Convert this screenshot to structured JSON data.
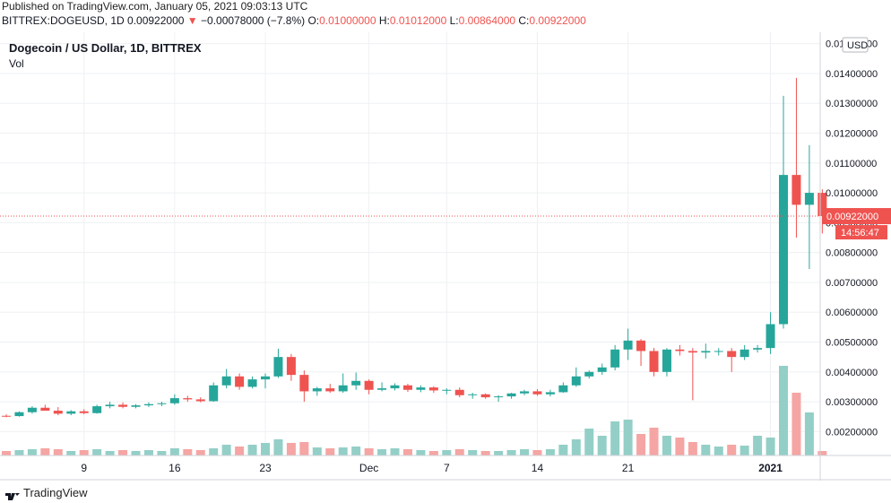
{
  "header": {
    "published": "Published on TradingView.com, January 05, 2021 09:03:13 UTC",
    "symbol": "BITTREX:DOGEUSD, 1D",
    "last": "0.00922000",
    "change": "−0.00078000 (−7.8%)",
    "o_label": "O:",
    "o_value": "0.01000000",
    "h_label": "H:",
    "h_value": "0.01012000",
    "l_label": "L:",
    "l_value": "0.00864000",
    "c_label": "C:",
    "c_value": "0.00922000"
  },
  "legend": {
    "title": "Dogecoin / US Dollar, 1D, BITTREX",
    "vol": "Vol"
  },
  "price_axis": {
    "currency": "USD",
    "last_price_label": "0.00922000",
    "countdown": "14:56:47",
    "ticks": [
      "0.01500000",
      "0.01400000",
      "0.01300000",
      "0.01200000",
      "0.01100000",
      "0.01000000",
      "0.00900000",
      "0.00800000",
      "0.00700000",
      "0.00600000",
      "0.00500000",
      "0.00400000",
      "0.00300000",
      "0.00200000"
    ]
  },
  "footer": {
    "brand": "TradingView"
  },
  "colors": {
    "up": "#26a69a",
    "down": "#ef5350",
    "up_vol": "#93cfc7",
    "down_vol": "#f5a5a3",
    "grid": "#eef0f3",
    "last_line": "#ef5350"
  },
  "chart_data": {
    "type": "candlestick",
    "title": "Dogecoin / US Dollar, 1D, BITTREX",
    "ylabel": "USD",
    "ylim": [
      0.0012,
      0.0152
    ],
    "x_tick_labels": [
      {
        "label": "9",
        "index": 6
      },
      {
        "label": "16",
        "index": 13
      },
      {
        "label": "23",
        "index": 20
      },
      {
        "label": "Dec",
        "index": 28
      },
      {
        "label": "7",
        "index": 34
      },
      {
        "label": "14",
        "index": 41
      },
      {
        "label": "21",
        "index": 48
      },
      {
        "label": "2021",
        "index": 59
      }
    ],
    "candles": [
      {
        "o": 0.00253,
        "h": 0.00258,
        "l": 0.00248,
        "c": 0.00252
      },
      {
        "o": 0.00252,
        "h": 0.00268,
        "l": 0.0025,
        "c": 0.00265
      },
      {
        "o": 0.00265,
        "h": 0.00285,
        "l": 0.0026,
        "c": 0.0028
      },
      {
        "o": 0.0028,
        "h": 0.0029,
        "l": 0.0027,
        "c": 0.0027
      },
      {
        "o": 0.0027,
        "h": 0.00282,
        "l": 0.00255,
        "c": 0.0026
      },
      {
        "o": 0.0026,
        "h": 0.00272,
        "l": 0.00255,
        "c": 0.00268
      },
      {
        "o": 0.00268,
        "h": 0.00275,
        "l": 0.00258,
        "c": 0.00262
      },
      {
        "o": 0.00262,
        "h": 0.0029,
        "l": 0.0026,
        "c": 0.00285
      },
      {
        "o": 0.00285,
        "h": 0.003,
        "l": 0.00278,
        "c": 0.0029
      },
      {
        "o": 0.0029,
        "h": 0.00298,
        "l": 0.00278,
        "c": 0.00283
      },
      {
        "o": 0.00283,
        "h": 0.00292,
        "l": 0.00278,
        "c": 0.00288
      },
      {
        "o": 0.00288,
        "h": 0.00298,
        "l": 0.00282,
        "c": 0.00292
      },
      {
        "o": 0.00292,
        "h": 0.003,
        "l": 0.00285,
        "c": 0.00295
      },
      {
        "o": 0.00295,
        "h": 0.00325,
        "l": 0.0029,
        "c": 0.00312
      },
      {
        "o": 0.00312,
        "h": 0.0032,
        "l": 0.003,
        "c": 0.00308
      },
      {
        "o": 0.00308,
        "h": 0.00315,
        "l": 0.00298,
        "c": 0.00302
      },
      {
        "o": 0.00302,
        "h": 0.00365,
        "l": 0.003,
        "c": 0.00355
      },
      {
        "o": 0.00355,
        "h": 0.0041,
        "l": 0.00345,
        "c": 0.00385
      },
      {
        "o": 0.00385,
        "h": 0.00395,
        "l": 0.0034,
        "c": 0.0035
      },
      {
        "o": 0.0035,
        "h": 0.00385,
        "l": 0.00345,
        "c": 0.00375
      },
      {
        "o": 0.00375,
        "h": 0.00395,
        "l": 0.00345,
        "c": 0.00385
      },
      {
        "o": 0.00385,
        "h": 0.00478,
        "l": 0.0038,
        "c": 0.0045
      },
      {
        "o": 0.0045,
        "h": 0.0046,
        "l": 0.0037,
        "c": 0.0039
      },
      {
        "o": 0.0039,
        "h": 0.00405,
        "l": 0.003,
        "c": 0.00335
      },
      {
        "o": 0.00335,
        "h": 0.0035,
        "l": 0.0032,
        "c": 0.00345
      },
      {
        "o": 0.00345,
        "h": 0.0036,
        "l": 0.0033,
        "c": 0.00335
      },
      {
        "o": 0.00335,
        "h": 0.00395,
        "l": 0.0033,
        "c": 0.00355
      },
      {
        "o": 0.00355,
        "h": 0.00398,
        "l": 0.0034,
        "c": 0.0037
      },
      {
        "o": 0.0037,
        "h": 0.00375,
        "l": 0.00325,
        "c": 0.0034
      },
      {
        "o": 0.0034,
        "h": 0.00365,
        "l": 0.00335,
        "c": 0.00345
      },
      {
        "o": 0.00345,
        "h": 0.00362,
        "l": 0.00338,
        "c": 0.00355
      },
      {
        "o": 0.00355,
        "h": 0.0036,
        "l": 0.00333,
        "c": 0.0034
      },
      {
        "o": 0.0034,
        "h": 0.00355,
        "l": 0.00332,
        "c": 0.00348
      },
      {
        "o": 0.00348,
        "h": 0.00352,
        "l": 0.0033,
        "c": 0.00338
      },
      {
        "o": 0.00338,
        "h": 0.00345,
        "l": 0.00325,
        "c": 0.0034
      },
      {
        "o": 0.0034,
        "h": 0.00348,
        "l": 0.00315,
        "c": 0.00322
      },
      {
        "o": 0.00322,
        "h": 0.0033,
        "l": 0.0031,
        "c": 0.00325
      },
      {
        "o": 0.00325,
        "h": 0.00328,
        "l": 0.0031,
        "c": 0.00315
      },
      {
        "o": 0.00315,
        "h": 0.00322,
        "l": 0.003,
        "c": 0.00318
      },
      {
        "o": 0.00318,
        "h": 0.0033,
        "l": 0.0031,
        "c": 0.00328
      },
      {
        "o": 0.00328,
        "h": 0.0034,
        "l": 0.00322,
        "c": 0.00335
      },
      {
        "o": 0.00335,
        "h": 0.00342,
        "l": 0.0032,
        "c": 0.00325
      },
      {
        "o": 0.00325,
        "h": 0.0034,
        "l": 0.00318,
        "c": 0.00332
      },
      {
        "o": 0.00332,
        "h": 0.00365,
        "l": 0.0033,
        "c": 0.00355
      },
      {
        "o": 0.00355,
        "h": 0.00415,
        "l": 0.0035,
        "c": 0.00385
      },
      {
        "o": 0.00385,
        "h": 0.00405,
        "l": 0.00378,
        "c": 0.004
      },
      {
        "o": 0.004,
        "h": 0.00428,
        "l": 0.0039,
        "c": 0.00415
      },
      {
        "o": 0.00415,
        "h": 0.0049,
        "l": 0.00405,
        "c": 0.00475
      },
      {
        "o": 0.00475,
        "h": 0.00545,
        "l": 0.0044,
        "c": 0.00505
      },
      {
        "o": 0.00505,
        "h": 0.0051,
        "l": 0.0042,
        "c": 0.0047
      },
      {
        "o": 0.0047,
        "h": 0.0048,
        "l": 0.00385,
        "c": 0.004
      },
      {
        "o": 0.004,
        "h": 0.0048,
        "l": 0.00385,
        "c": 0.00475
      },
      {
        "o": 0.00475,
        "h": 0.0049,
        "l": 0.00455,
        "c": 0.0047
      },
      {
        "o": 0.0047,
        "h": 0.0048,
        "l": 0.00305,
        "c": 0.00465
      },
      {
        "o": 0.00465,
        "h": 0.00495,
        "l": 0.00445,
        "c": 0.0047
      },
      {
        "o": 0.0047,
        "h": 0.0048,
        "l": 0.00455,
        "c": 0.0047
      },
      {
        "o": 0.0047,
        "h": 0.0048,
        "l": 0.004,
        "c": 0.0045
      },
      {
        "o": 0.0045,
        "h": 0.0049,
        "l": 0.0044,
        "c": 0.00475
      },
      {
        "o": 0.00475,
        "h": 0.0049,
        "l": 0.00465,
        "c": 0.0048
      },
      {
        "o": 0.0048,
        "h": 0.006,
        "l": 0.0046,
        "c": 0.0056
      },
      {
        "o": 0.0056,
        "h": 0.01325,
        "l": 0.00545,
        "c": 0.0106
      },
      {
        "o": 0.0106,
        "h": 0.01385,
        "l": 0.0085,
        "c": 0.0096
      },
      {
        "o": 0.0096,
        "h": 0.0116,
        "l": 0.00745,
        "c": 0.01
      },
      {
        "o": 0.01,
        "h": 0.01012,
        "l": 0.00864,
        "c": 0.00922
      }
    ],
    "volume_relative": [
      0.05,
      0.06,
      0.07,
      0.08,
      0.07,
      0.05,
      0.06,
      0.07,
      0.05,
      0.06,
      0.05,
      0.06,
      0.05,
      0.08,
      0.07,
      0.06,
      0.08,
      0.12,
      0.1,
      0.12,
      0.14,
      0.18,
      0.14,
      0.15,
      0.09,
      0.08,
      0.09,
      0.1,
      0.08,
      0.07,
      0.08,
      0.07,
      0.06,
      0.05,
      0.06,
      0.07,
      0.06,
      0.05,
      0.05,
      0.06,
      0.07,
      0.06,
      0.07,
      0.12,
      0.18,
      0.3,
      0.22,
      0.38,
      0.4,
      0.24,
      0.31,
      0.22,
      0.2,
      0.15,
      0.12,
      0.1,
      0.12,
      0.11,
      0.22,
      0.2,
      1.0,
      0.7,
      0.48,
      0.05
    ],
    "last_price": 0.00922
  }
}
